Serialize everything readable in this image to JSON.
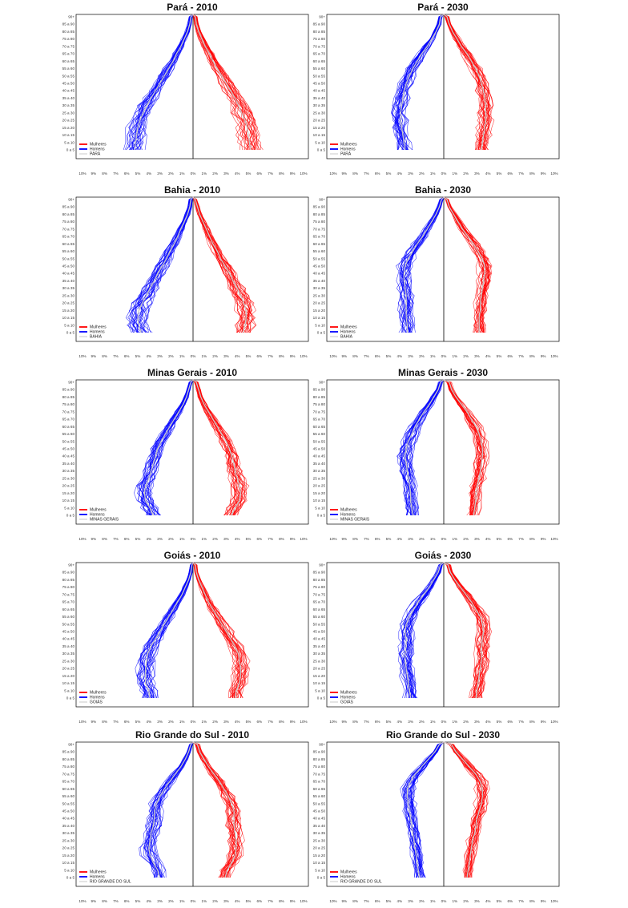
{
  "colors": {
    "female": "#ff0000",
    "male": "#0000ff",
    "median": "#c8c8c8",
    "axis": "#000000"
  },
  "age_groups": [
    "0 a 5",
    "5 a 10",
    "10 a 15",
    "15 a 20",
    "20 a 25",
    "25 a 30",
    "30 a 35",
    "35 a 40",
    "40 a 45",
    "45 a 50",
    "50 a 55",
    "55 a 60",
    "60 a 65",
    "65 a 70",
    "70 a 75",
    "75 a 80",
    "80 a 85",
    "85 a 90",
    "90+"
  ],
  "x_ticks": [
    "10%",
    "9%",
    "8%",
    "7%",
    "6%",
    "5%",
    "4%",
    "3%",
    "2%",
    "1%",
    "0%",
    "1%",
    "2%",
    "3%",
    "4%",
    "5%",
    "6%",
    "7%",
    "8%",
    "9%",
    "10%"
  ],
  "legend_labels": {
    "female": "Mulheres",
    "male": "Homens"
  },
  "chart_data": [
    {
      "type": "population-pyramid",
      "title": "Pará - 2010",
      "legend_region": "PARÁ",
      "xlim": [
        -10,
        10
      ],
      "male": [
        5.3,
        5.2,
        5.1,
        5.0,
        4.8,
        4.5,
        4.2,
        3.8,
        3.4,
        3.0,
        2.6,
        2.2,
        1.8,
        1.5,
        1.1,
        0.8,
        0.5,
        0.3,
        0.2
      ],
      "female": [
        5.2,
        5.1,
        5.0,
        4.9,
        4.7,
        4.4,
        4.1,
        3.8,
        3.4,
        3.0,
        2.6,
        2.2,
        1.8,
        1.5,
        1.1,
        0.8,
        0.5,
        0.3,
        0.2
      ]
    },
    {
      "type": "population-pyramid",
      "title": "Pará - 2030",
      "legend_region": "PARÁ",
      "xlim": [
        -10,
        10
      ],
      "male": [
        3.5,
        3.6,
        3.7,
        3.8,
        3.9,
        3.9,
        3.8,
        3.7,
        3.6,
        3.4,
        3.1,
        2.8,
        2.4,
        2.0,
        1.5,
        1.1,
        0.7,
        0.4,
        0.3
      ],
      "female": [
        3.4,
        3.5,
        3.6,
        3.7,
        3.8,
        3.8,
        3.8,
        3.7,
        3.6,
        3.4,
        3.2,
        2.9,
        2.5,
        2.1,
        1.6,
        1.2,
        0.8,
        0.5,
        0.3
      ]
    },
    {
      "type": "population-pyramid",
      "title": "Bahia - 2010",
      "legend_region": "BAHIA",
      "xlim": [
        -10,
        10
      ],
      "male": [
        4.7,
        4.9,
        5.0,
        4.9,
        4.6,
        4.2,
        3.9,
        3.5,
        3.2,
        2.8,
        2.4,
        2.1,
        1.7,
        1.4,
        1.1,
        0.8,
        0.5,
        0.3,
        0.2
      ],
      "female": [
        4.5,
        4.7,
        4.8,
        4.8,
        4.6,
        4.3,
        4.0,
        3.6,
        3.3,
        2.9,
        2.5,
        2.2,
        1.8,
        1.5,
        1.2,
        0.9,
        0.6,
        0.4,
        0.2
      ]
    },
    {
      "type": "population-pyramid",
      "title": "Bahia - 2030",
      "legend_region": "BAHIA",
      "xlim": [
        -10,
        10
      ],
      "male": [
        3.3,
        3.3,
        3.4,
        3.4,
        3.4,
        3.4,
        3.5,
        3.6,
        3.6,
        3.5,
        3.2,
        2.8,
        2.4,
        1.9,
        1.5,
        1.1,
        0.7,
        0.4,
        0.2
      ],
      "female": [
        3.2,
        3.2,
        3.2,
        3.3,
        3.3,
        3.4,
        3.5,
        3.6,
        3.7,
        3.7,
        3.5,
        3.1,
        2.7,
        2.2,
        1.7,
        1.3,
        0.9,
        0.5,
        0.3
      ]
    },
    {
      "type": "population-pyramid",
      "title": "Minas Gerais - 2010",
      "legend_region": "MINAS GERAIS",
      "xlim": [
        -10,
        10
      ],
      "male": [
        3.6,
        3.9,
        4.3,
        4.4,
        4.3,
        4.0,
        3.8,
        3.6,
        3.4,
        3.2,
        2.9,
        2.5,
        2.1,
        1.7,
        1.3,
        0.9,
        0.6,
        0.4,
        0.2
      ],
      "female": [
        3.5,
        3.8,
        4.2,
        4.3,
        4.2,
        4.0,
        3.8,
        3.7,
        3.5,
        3.3,
        3.0,
        2.6,
        2.2,
        1.8,
        1.4,
        1.0,
        0.7,
        0.5,
        0.3
      ]
    },
    {
      "type": "population-pyramid",
      "title": "Minas Gerais - 2030",
      "legend_region": "MINAS GERAIS",
      "xlim": [
        -10,
        10
      ],
      "male": [
        2.8,
        2.9,
        3.0,
        3.0,
        3.1,
        3.2,
        3.3,
        3.4,
        3.5,
        3.4,
        3.2,
        2.9,
        2.6,
        2.2,
        1.8,
        1.3,
        0.9,
        0.5,
        0.3
      ],
      "female": [
        2.7,
        2.8,
        2.9,
        2.9,
        3.0,
        3.2,
        3.3,
        3.4,
        3.5,
        3.5,
        3.4,
        3.2,
        2.9,
        2.5,
        2.1,
        1.6,
        1.1,
        0.7,
        0.5
      ]
    },
    {
      "type": "population-pyramid",
      "title": "Goiás - 2010",
      "legend_region": "GOIÁS",
      "xlim": [
        -10,
        10
      ],
      "male": [
        3.9,
        4.0,
        4.3,
        4.3,
        4.3,
        4.2,
        4.1,
        3.8,
        3.4,
        3.0,
        2.6,
        2.2,
        1.8,
        1.4,
        1.0,
        0.7,
        0.4,
        0.2,
        0.1
      ],
      "female": [
        3.8,
        3.9,
        4.2,
        4.3,
        4.3,
        4.2,
        4.1,
        3.8,
        3.4,
        3.0,
        2.6,
        2.2,
        1.8,
        1.4,
        1.1,
        0.8,
        0.5,
        0.3,
        0.2
      ]
    },
    {
      "type": "population-pyramid",
      "title": "Goiás - 2030",
      "legend_region": "GOIÁS",
      "xlim": [
        -10,
        10
      ],
      "male": [
        3.0,
        3.1,
        3.2,
        3.3,
        3.4,
        3.5,
        3.5,
        3.4,
        3.4,
        3.5,
        3.4,
        3.1,
        2.7,
        2.3,
        1.8,
        1.3,
        0.9,
        0.5,
        0.3
      ],
      "female": [
        2.9,
        3.0,
        3.1,
        3.2,
        3.3,
        3.4,
        3.4,
        3.4,
        3.5,
        3.6,
        3.5,
        3.3,
        2.9,
        2.5,
        2.0,
        1.5,
        1.0,
        0.6,
        0.4
      ]
    },
    {
      "type": "population-pyramid",
      "title": "Rio Grande do Sul - 2010",
      "legend_region": "RIO GRANDE DO SUL",
      "xlim": [
        -10,
        10
      ],
      "male": [
        3.0,
        3.2,
        3.6,
        3.9,
        4.0,
        3.9,
        3.8,
        3.6,
        3.5,
        3.5,
        3.3,
        3.0,
        2.6,
        2.1,
        1.6,
        1.1,
        0.7,
        0.4,
        0.2
      ],
      "female": [
        2.9,
        3.1,
        3.5,
        3.8,
        3.9,
        3.9,
        3.8,
        3.7,
        3.7,
        3.7,
        3.5,
        3.2,
        2.8,
        2.4,
        1.9,
        1.4,
        1.0,
        0.6,
        0.4
      ]
    },
    {
      "type": "population-pyramid",
      "title": "Rio Grande do Sul - 2030",
      "legend_region": "RIO GRANDE DO SUL",
      "xlim": [
        -10,
        10
      ],
      "male": [
        2.2,
        2.3,
        2.4,
        2.5,
        2.6,
        2.7,
        2.8,
        2.9,
        3.0,
        3.1,
        3.2,
        3.3,
        3.3,
        3.0,
        2.6,
        2.0,
        1.4,
        0.8,
        0.4
      ],
      "female": [
        2.1,
        2.2,
        2.3,
        2.4,
        2.5,
        2.6,
        2.8,
        2.9,
        3.0,
        3.2,
        3.4,
        3.5,
        3.5,
        3.3,
        2.9,
        2.3,
        1.7,
        1.1,
        0.7
      ]
    }
  ]
}
